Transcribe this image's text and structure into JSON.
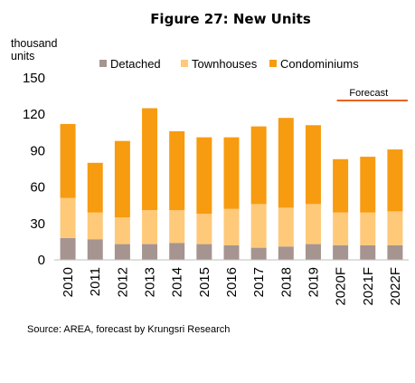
{
  "chart_data": {
    "type": "bar",
    "stacked": true,
    "title": "Figure 27: New Units",
    "ylabel": "thousand units",
    "ylim": [
      0,
      150
    ],
    "yticks": [
      0,
      30,
      60,
      90,
      120,
      150
    ],
    "categories": [
      "2010",
      "2011",
      "2012",
      "2013",
      "2014",
      "2015",
      "2016",
      "2017",
      "2018",
      "2019",
      "2020F",
      "2021F",
      "2022F"
    ],
    "series": [
      {
        "name": "Detached",
        "color": "#a69490",
        "values": [
          18,
          17,
          13,
          13,
          14,
          13,
          12,
          10,
          11,
          13,
          12,
          12,
          12
        ]
      },
      {
        "name": "Townhouses",
        "color": "#ffc97a",
        "values": [
          33,
          22,
          22,
          28,
          27,
          25,
          30,
          36,
          32,
          33,
          27,
          27,
          28
        ]
      },
      {
        "name": "Condominiums",
        "color": "#f79b10",
        "values": [
          61,
          41,
          63,
          84,
          65,
          63,
          59,
          64,
          74,
          65,
          44,
          46,
          51
        ]
      }
    ],
    "legend_position": "top",
    "annotation": {
      "text": "Forecast",
      "color": "#e8650a"
    },
    "grid": false
  },
  "source": "Source: AREA, forecast by Krungsri Research"
}
